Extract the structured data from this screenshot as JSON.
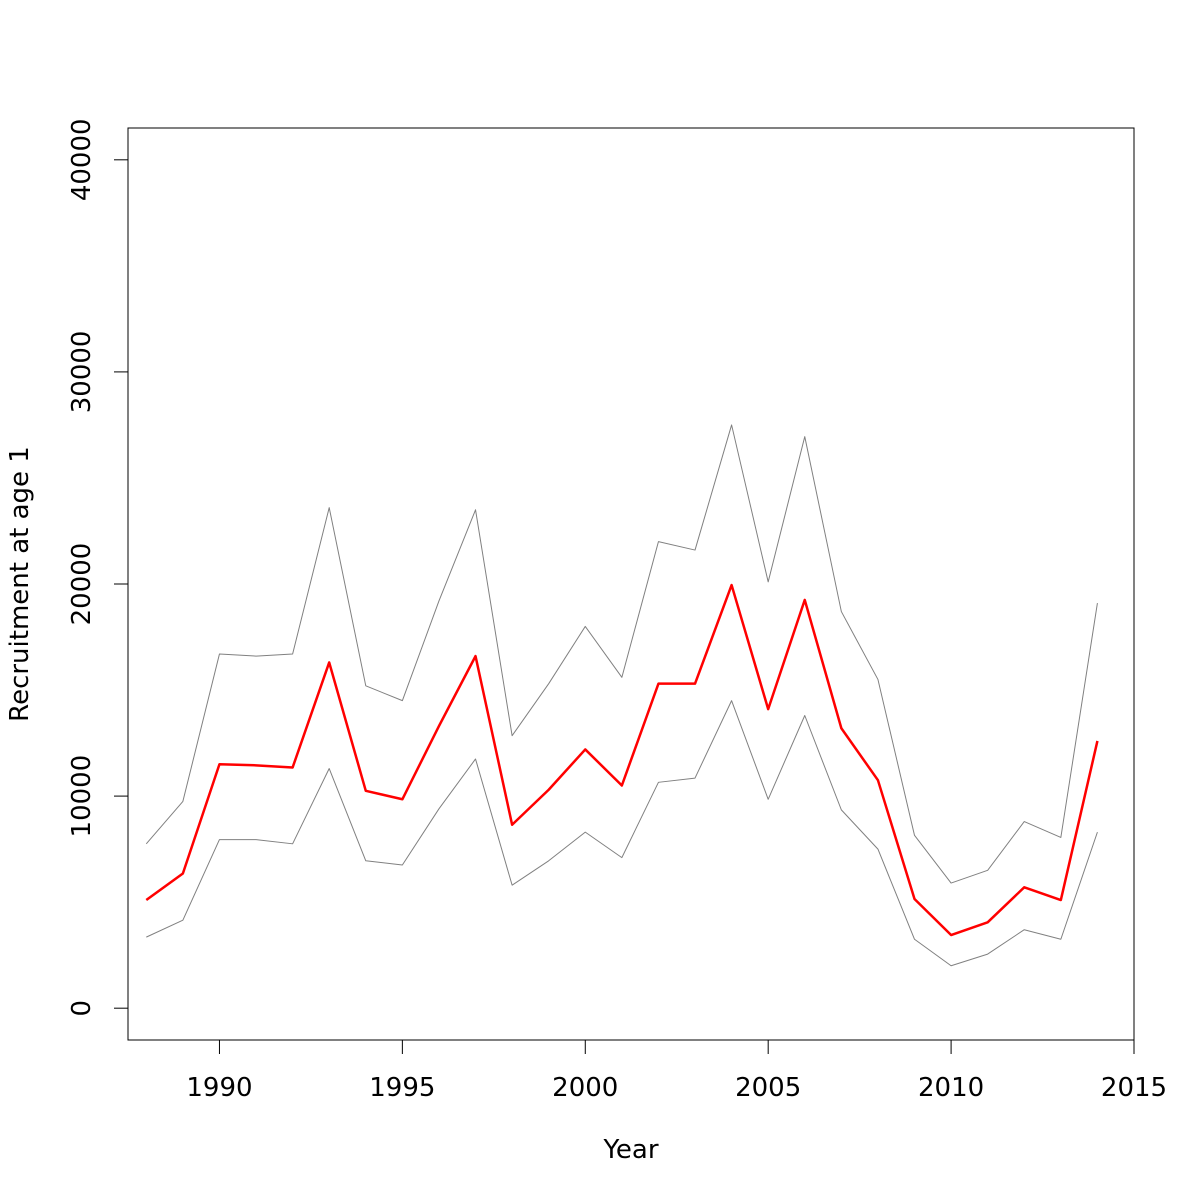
{
  "chart_data": {
    "type": "line",
    "title": "",
    "xlabel": "Year",
    "ylabel": "Recruitment at age 1",
    "xlim": [
      1987.5,
      2015
    ],
    "ylim": [
      -1500,
      41500
    ],
    "x_ticks": [
      "1990",
      "1995",
      "2000",
      "2005",
      "2010",
      "2015"
    ],
    "y_ticks": [
      "0",
      "10000",
      "20000",
      "30000",
      "40000"
    ],
    "x_tick_values": [
      1990,
      1995,
      2000,
      2005,
      2010,
      2015
    ],
    "y_tick_values": [
      0,
      10000,
      20000,
      30000,
      40000
    ],
    "grid": false,
    "x": [
      1988,
      1989,
      1990,
      1991,
      1992,
      1993,
      1994,
      1995,
      1996,
      1997,
      1998,
      1999,
      2000,
      2001,
      2002,
      2003,
      2004,
      2005,
      2006,
      2007,
      2008,
      2009,
      2010,
      2011,
      2012,
      2013,
      2014
    ],
    "series": [
      {
        "role": "estimate",
        "color": "#ff0000",
        "values": [
          5100,
          6350,
          11500,
          11450,
          11350,
          16300,
          10250,
          9850,
          13300,
          16600,
          8650,
          10300,
          12200,
          10500,
          15300,
          15300,
          19950,
          14100,
          19250,
          13200,
          10750,
          5150,
          3450,
          4050,
          5700,
          5100,
          12600
        ]
      },
      {
        "role": "upper",
        "color": "#808080",
        "values": [
          7750,
          9750,
          16700,
          16600,
          16700,
          23600,
          15200,
          14500,
          19200,
          23500,
          12850,
          15300,
          18000,
          15600,
          22000,
          21600,
          27500,
          20100,
          26950,
          18700,
          15500,
          8150,
          5900,
          6500,
          8800,
          8050,
          19100
        ]
      },
      {
        "role": "lower",
        "color": "#808080",
        "values": [
          3350,
          4150,
          7950,
          7950,
          7750,
          11300,
          6950,
          6750,
          9400,
          11750,
          5800,
          6950,
          8300,
          7100,
          10650,
          10850,
          14500,
          9850,
          13800,
          9350,
          7500,
          3250,
          2000,
          2550,
          3700,
          3250,
          8300
        ]
      }
    ]
  }
}
